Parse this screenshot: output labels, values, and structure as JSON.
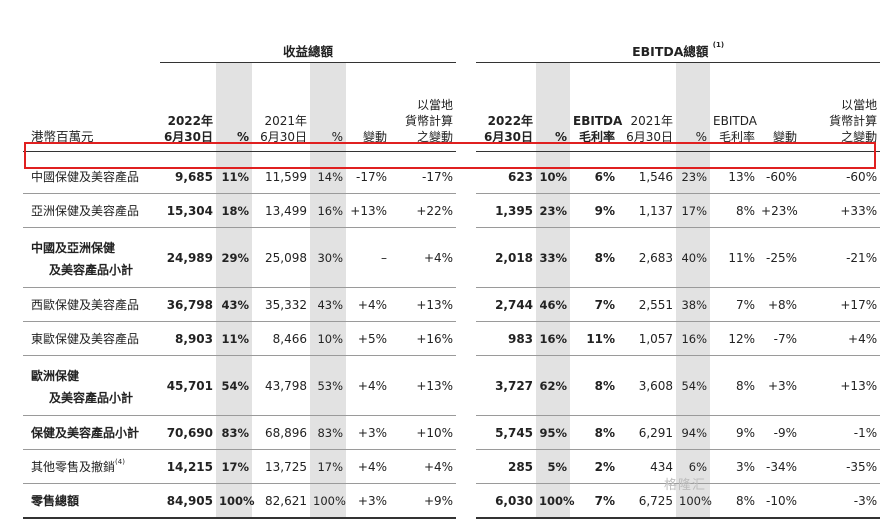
{
  "groups": {
    "revenue": "收益總額",
    "ebitda": "EBITDA總額",
    "ebitda_note": "(1)"
  },
  "headers": {
    "row_label": "港幣百萬元",
    "rev_2022": "2022年\n6月30日",
    "rev_pct": "%",
    "rev_2021": "2021年\n6月30日",
    "rev_pct2": "%",
    "rev_change": "變動",
    "rev_lc_change": "以當地\n貨幣計算\n之變動",
    "eb_2022": "2022年\n6月30日",
    "eb_pct": "%",
    "eb_margin": "EBITDA\n毛利率",
    "eb_2021": "2021年\n6月30日",
    "eb_pct2": "%",
    "eb_margin2": "EBITDA\n毛利率",
    "eb_change": "變動",
    "eb_lc_change": "以當地\n貨幣計算\n之變動"
  },
  "rows": [
    {
      "label": "中國保健及美容產品",
      "cells": [
        "9,685",
        "11%",
        "11,599",
        "14%",
        "-17%",
        "-17%",
        "623",
        "10%",
        "6%",
        "1,546",
        "23%",
        "13%",
        "-60%",
        "-60%"
      ]
    },
    {
      "label": "亞洲保健及美容產品",
      "cells": [
        "15,304",
        "18%",
        "13,499",
        "16%",
        "+13%",
        "+22%",
        "1,395",
        "23%",
        "9%",
        "1,137",
        "17%",
        "8%",
        "+23%",
        "+33%"
      ]
    },
    {
      "label1": "中國及亞洲保健",
      "label2": "及美容產品小計",
      "cells": [
        "24,989",
        "29%",
        "25,098",
        "30%",
        "–",
        "+4%",
        "2,018",
        "33%",
        "8%",
        "2,683",
        "40%",
        "11%",
        "-25%",
        "-21%"
      ]
    },
    {
      "label": "西歐保健及美容產品",
      "cells": [
        "36,798",
        "43%",
        "35,332",
        "43%",
        "+4%",
        "+13%",
        "2,744",
        "46%",
        "7%",
        "2,551",
        "38%",
        "7%",
        "+8%",
        "+17%"
      ]
    },
    {
      "label": "東歐保健及美容產品",
      "cells": [
        "8,903",
        "11%",
        "8,466",
        "10%",
        "+5%",
        "+16%",
        "983",
        "16%",
        "11%",
        "1,057",
        "16%",
        "12%",
        "-7%",
        "+4%"
      ]
    },
    {
      "label1": "歐洲保健",
      "label2": "及美容產品小計",
      "cells": [
        "45,701",
        "54%",
        "43,798",
        "53%",
        "+4%",
        "+13%",
        "3,727",
        "62%",
        "8%",
        "3,608",
        "54%",
        "8%",
        "+3%",
        "+13%"
      ]
    },
    {
      "label": "保健及美容產品小計",
      "cells": [
        "70,690",
        "83%",
        "68,896",
        "83%",
        "+3%",
        "+10%",
        "5,745",
        "95%",
        "8%",
        "6,291",
        "94%",
        "9%",
        "-9%",
        "-1%"
      ]
    },
    {
      "label": "其他零售及撤銷",
      "label_note": "(4)",
      "cells": [
        "14,215",
        "17%",
        "13,725",
        "17%",
        "+4%",
        "+4%",
        "285",
        "5%",
        "2%",
        "434",
        "6%",
        "3%",
        "-34%",
        "-35%"
      ]
    },
    {
      "label": "零售總額",
      "cells": [
        "84,905",
        "100%",
        "82,621",
        "100%",
        "+3%",
        "+9%",
        "6,030",
        "100%",
        "7%",
        "6,725",
        "100%",
        "8%",
        "-10%",
        "-3%"
      ]
    }
  ],
  "watermark": "格隆汇"
}
